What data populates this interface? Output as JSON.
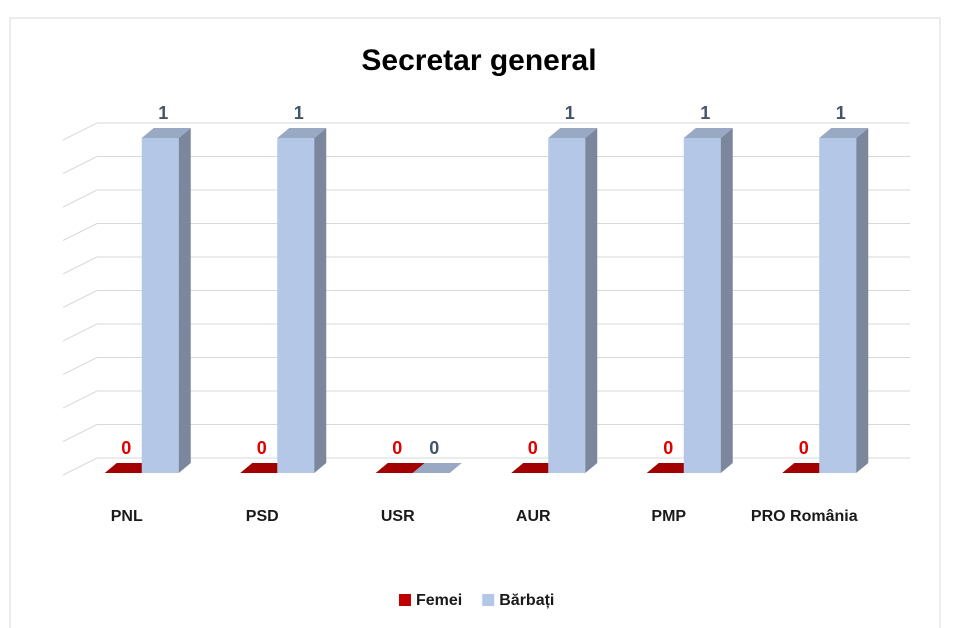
{
  "chart_data": {
    "type": "bar3d",
    "title": "Secretar general",
    "categories": [
      "PNL",
      "PSD",
      "USR",
      "AUR",
      "PMP",
      "PRO România"
    ],
    "series": [
      {
        "name": "Femei",
        "color": "#c00000",
        "label_color": "#e00000",
        "values": [
          0,
          0,
          0,
          0,
          0,
          0
        ]
      },
      {
        "name": "Bărbați",
        "color": "#b4c7e7",
        "label_color": "#44546a",
        "values": [
          1,
          1,
          0,
          1,
          1,
          1
        ]
      }
    ],
    "ylim": [
      0,
      1
    ],
    "yticks": [
      0,
      0.1,
      0.2,
      0.3,
      0.4,
      0.5,
      0.6,
      0.7,
      0.8,
      0.9,
      1
    ],
    "grid": true,
    "legend": "bottom"
  }
}
